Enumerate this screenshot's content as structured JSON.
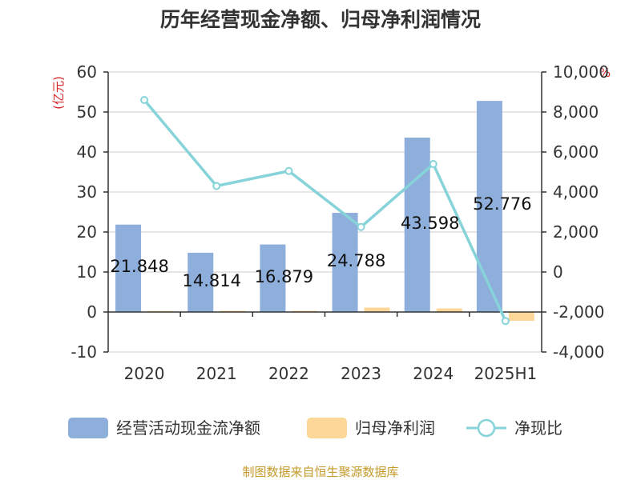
{
  "chart_data": {
    "type": "bar",
    "title": "历年经营现金净额、归母净利润情况",
    "categories": [
      "2020",
      "2021",
      "2022",
      "2023",
      "2024",
      "2025H1"
    ],
    "series": [
      {
        "name": "经营活动现金流净额",
        "type": "bar",
        "axis": "left",
        "color": "#8eaedb",
        "values": [
          21.848,
          14.814,
          16.879,
          24.788,
          43.598,
          52.776
        ]
      },
      {
        "name": "归母净利润",
        "type": "bar",
        "axis": "left",
        "color": "#fdd797",
        "values": [
          0.25,
          0.3,
          0.3,
          1.1,
          0.9,
          -2.2
        ]
      },
      {
        "name": "净现比",
        "type": "line",
        "axis": "right",
        "color": "#86d3d9",
        "values": [
          8600,
          4300,
          5050,
          2250,
          5400,
          -2450
        ]
      }
    ],
    "data_labels": [
      "21.848",
      "14.814",
      "16.879",
      "24.788",
      "43.598",
      "52.776"
    ],
    "y_left": {
      "unit": "(亿元)",
      "ylim": [
        -10,
        60
      ],
      "ticks": [
        "60",
        "50",
        "40",
        "30",
        "20",
        "10",
        "0",
        "-10"
      ],
      "tick_values": [
        60,
        50,
        40,
        30,
        20,
        10,
        0,
        -10
      ]
    },
    "y_right": {
      "unit": "%",
      "ylim": [
        -4000,
        10000
      ],
      "ticks": [
        "10,000",
        "8,000",
        "6,000",
        "4,000",
        "2,000",
        "0",
        "-2,000",
        "-4,000"
      ],
      "tick_values": [
        10000,
        8000,
        6000,
        4000,
        2000,
        0,
        -2000,
        -4000
      ]
    },
    "grid": true,
    "legend_position": "bottom"
  },
  "source": "制图数据来自恒生聚源数据库"
}
